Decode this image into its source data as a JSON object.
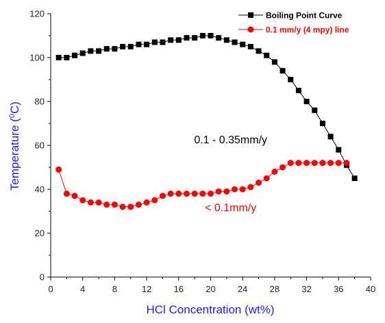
{
  "chart_data": {
    "type": "scatter",
    "xlabel": "HCl Concentration (wt%)",
    "ylabel_prefix": "Temperature (",
    "ylabel_sup": "0",
    "ylabel_suffix": "C)",
    "xlim": [
      0,
      40
    ],
    "ylim": [
      0,
      120
    ],
    "x_ticks": [
      0,
      4,
      8,
      12,
      16,
      20,
      24,
      28,
      32,
      36,
      40
    ],
    "x_tick_labels": [
      "0",
      "4",
      "8",
      "12",
      "16",
      "20",
      "24",
      "28",
      "32",
      "36",
      "40"
    ],
    "y_ticks": [
      0,
      20,
      40,
      60,
      80,
      100,
      120
    ],
    "y_tick_labels": [
      "0",
      "20",
      "40",
      "60",
      "80",
      "100",
      "120"
    ],
    "grid": false,
    "legend_position": "top-right",
    "annotations": [
      {
        "text": "0.1 - 0.35mm/y",
        "x": 22.5,
        "y": 61,
        "color": "#000000"
      },
      {
        "text": "< 0.1mm/y",
        "x": 22.5,
        "y": 30,
        "color": "#ff0000"
      }
    ],
    "series": [
      {
        "name": "Boiling Point Curve",
        "color": "#000000",
        "marker": "square",
        "x": [
          1,
          2,
          3,
          4,
          5,
          6,
          7,
          8,
          9,
          10,
          11,
          12,
          13,
          14,
          15,
          16,
          17,
          18,
          19,
          20,
          21,
          22,
          23,
          24,
          25,
          26,
          27,
          28,
          29,
          30,
          31,
          32,
          33,
          34,
          35,
          36,
          37,
          38
        ],
        "y": [
          100,
          100,
          101,
          102,
          103,
          103,
          104,
          104,
          105,
          105,
          106,
          106,
          107,
          107,
          108,
          108,
          109,
          109,
          110,
          110,
          109,
          108,
          107,
          106,
          105,
          103,
          101,
          98,
          94,
          90,
          85,
          80,
          76,
          70,
          64,
          58,
          51,
          45
        ]
      },
      {
        "name": "0.1 mm/y (4 mpy) line",
        "color": "#ff0000",
        "marker": "circle",
        "x": [
          1,
          2,
          3,
          4,
          5,
          6,
          7,
          8,
          9,
          10,
          11,
          12,
          13,
          14,
          15,
          16,
          17,
          18,
          19,
          20,
          21,
          22,
          23,
          24,
          25,
          26,
          27,
          28,
          29,
          30,
          31,
          32,
          33,
          34,
          35,
          36,
          37
        ],
        "y": [
          49,
          38,
          37,
          35,
          34,
          34,
          33,
          33,
          32,
          32,
          33,
          34,
          35,
          37,
          38,
          38,
          38,
          38,
          38,
          38,
          39,
          39,
          40,
          40,
          41,
          43,
          45,
          48,
          50,
          52,
          52,
          52,
          52,
          52,
          52,
          52,
          52
        ]
      }
    ]
  }
}
